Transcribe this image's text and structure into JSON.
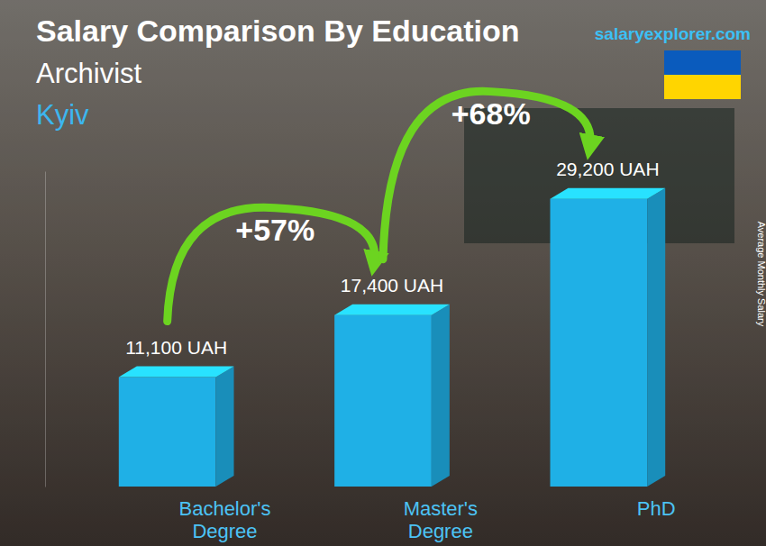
{
  "chart_data": {
    "type": "bar",
    "title": "Salary Comparison By Education",
    "subtitle": "Archivist",
    "location": "Kyiv",
    "source": "salaryexplorer.com",
    "y_label": "Average Monthly Salary",
    "categories": [
      "Bachelor's Degree",
      "Master's Degree",
      "PhD"
    ],
    "values": [
      11100,
      17400,
      29200
    ],
    "value_labels": [
      "11,100 UAH",
      "17,400 UAH",
      "29,200 UAH"
    ],
    "annotations": [
      "+57%",
      "+68%"
    ],
    "color": "#1fb0e6",
    "ylim": [
      0,
      32000
    ],
    "yticks": [],
    "grid": false,
    "data_labels": true,
    "tick_labels": "x"
  }
}
